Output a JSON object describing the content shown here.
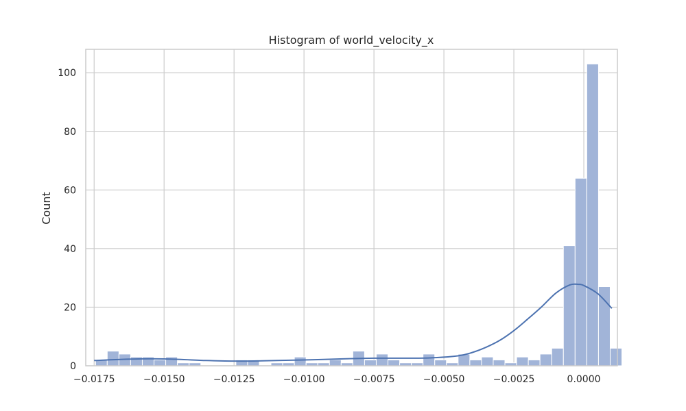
{
  "chart_data": {
    "type": "bar",
    "title": "Histogram of world_velocity_x",
    "xlabel": "",
    "ylabel": "Count",
    "xlim": [
      -0.0178,
      0.0012
    ],
    "ylim": [
      0,
      108
    ],
    "grid": true,
    "x_ticks": [
      -0.0175,
      -0.015,
      -0.0125,
      -0.01,
      -0.0075,
      -0.005,
      -0.0025,
      0.0
    ],
    "x_tick_labels": [
      "−0.0175",
      "−0.0150",
      "−0.0125",
      "−0.0100",
      "−0.0075",
      "−0.0050",
      "−0.0025",
      "0.0000"
    ],
    "y_ticks": [
      0,
      20,
      40,
      60,
      80,
      100
    ],
    "y_tick_labels": [
      "0",
      "20",
      "40",
      "60",
      "80",
      "100"
    ],
    "bin_start": -0.01745,
    "bin_width": 0.000418,
    "counts": [
      2,
      5,
      4,
      3,
      3,
      2,
      3,
      1,
      1,
      0,
      0,
      0,
      2,
      2,
      0,
      1,
      1,
      3,
      1,
      1,
      2,
      1,
      5,
      2,
      4,
      2,
      1,
      1,
      4,
      2,
      1,
      4,
      2,
      3,
      2,
      1,
      3,
      2,
      4,
      6,
      41,
      64,
      103,
      27,
      6
    ],
    "kde": {
      "x": [
        -0.0175,
        -0.0165,
        -0.0155,
        -0.0145,
        -0.0135,
        -0.0125,
        -0.0115,
        -0.0105,
        -0.0095,
        -0.0085,
        -0.0075,
        -0.0065,
        -0.0055,
        -0.0045,
        -0.004,
        -0.0035,
        -0.003,
        -0.0025,
        -0.002,
        -0.0015,
        -0.001,
        -0.0005,
        -0.0002,
        0.0,
        0.0005,
        0.001
      ],
      "y": [
        1.8,
        2.2,
        2.4,
        2.2,
        1.8,
        1.6,
        1.7,
        1.9,
        2.1,
        2.4,
        2.6,
        2.6,
        2.7,
        3.4,
        4.5,
        6.3,
        8.7,
        12.0,
        16.0,
        20.2,
        24.8,
        27.6,
        27.8,
        27.4,
        24.6,
        19.6
      ]
    },
    "colors": {
      "bar_fill": "#a1b4d8",
      "bar_edge": "#ffffff",
      "kde_line": "#4c72b0",
      "grid": "#cccccc",
      "frame": "#cccccc"
    }
  }
}
